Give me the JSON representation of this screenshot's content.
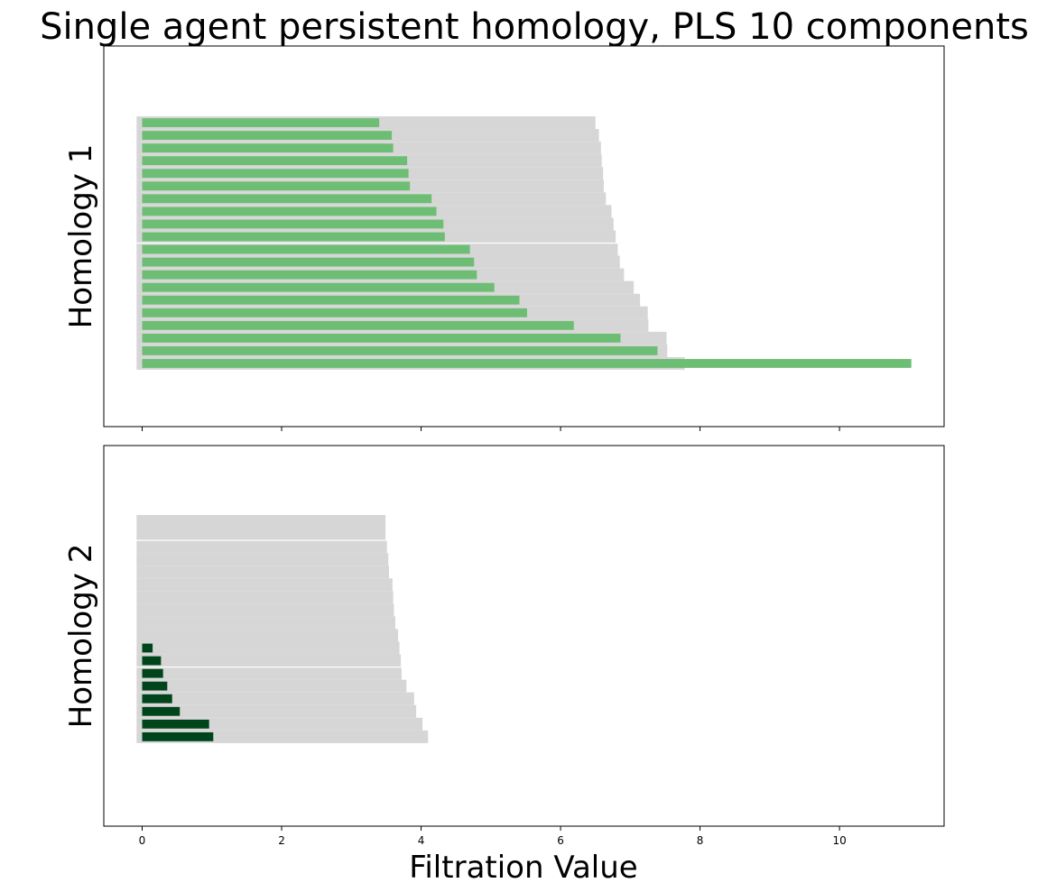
{
  "chart_data": {
    "type": "bar",
    "title": "Single agent persistent homology, PLS 10 components",
    "xlabel": "Filtration Value",
    "xlim": [
      -0.55,
      11.5
    ],
    "xticks": [
      0,
      2,
      4,
      6,
      8,
      10
    ],
    "xtick_labels": [
      "0",
      "2",
      "4",
      "6",
      "8",
      "10"
    ],
    "colors": {
      "background_bar": "#d6d6d6",
      "homology_1": "#6dbe74",
      "homology_2": "#00441b"
    },
    "panels": [
      {
        "ylabel": "Homology 1",
        "gray_bars": [
          {
            "length": 6.5,
            "height": 1
          },
          {
            "length": 6.55,
            "height": 1
          },
          {
            "length": 6.58,
            "height": 1
          },
          {
            "length": 6.59,
            "height": 1
          },
          {
            "length": 6.61,
            "height": 1
          },
          {
            "length": 6.62,
            "height": 1
          },
          {
            "length": 6.65,
            "height": 1
          },
          {
            "length": 6.73,
            "height": 1
          },
          {
            "length": 6.76,
            "height": 1
          },
          {
            "length": 6.79,
            "height": 1
          },
          {
            "length": 6.82,
            "height": 1
          },
          {
            "length": 6.85,
            "height": 1
          },
          {
            "length": 6.91,
            "height": 1
          },
          {
            "length": 7.05,
            "height": 1
          },
          {
            "length": 7.14,
            "height": 1
          },
          {
            "length": 7.25,
            "height": 1
          },
          {
            "length": 7.26,
            "height": 1
          },
          {
            "length": 7.52,
            "height": 1
          },
          {
            "length": 7.53,
            "height": 1
          },
          {
            "length": 7.78,
            "height": 1
          }
        ],
        "bars": [
          3.4,
          3.58,
          3.6,
          3.8,
          3.82,
          3.84,
          4.15,
          4.22,
          4.32,
          4.34,
          4.7,
          4.76,
          4.8,
          5.05,
          5.41,
          5.52,
          6.19,
          6.86,
          7.39,
          11.03
        ]
      },
      {
        "ylabel": "Homology 2",
        "gray_bars": [
          {
            "length": 3.49,
            "height": 2
          },
          {
            "length": 3.51,
            "height": 1
          },
          {
            "length": 3.53,
            "height": 1
          },
          {
            "length": 3.54,
            "height": 1
          },
          {
            "length": 3.59,
            "height": 1
          },
          {
            "length": 3.6,
            "height": 1
          },
          {
            "length": 3.61,
            "height": 1
          },
          {
            "length": 3.63,
            "height": 1
          },
          {
            "length": 3.67,
            "height": 1
          },
          {
            "length": 3.69,
            "height": 1
          },
          {
            "length": 3.71,
            "height": 1
          },
          {
            "length": 3.72,
            "height": 1
          },
          {
            "length": 3.79,
            "height": 1
          },
          {
            "length": 3.9,
            "height": 1
          },
          {
            "length": 3.93,
            "height": 1
          },
          {
            "length": 4.02,
            "height": 1
          },
          {
            "length": 4.1,
            "height": 1
          }
        ],
        "bars": [
          0.15,
          0.27,
          0.3,
          0.36,
          0.43,
          0.54,
          0.96,
          1.02
        ]
      }
    ]
  }
}
